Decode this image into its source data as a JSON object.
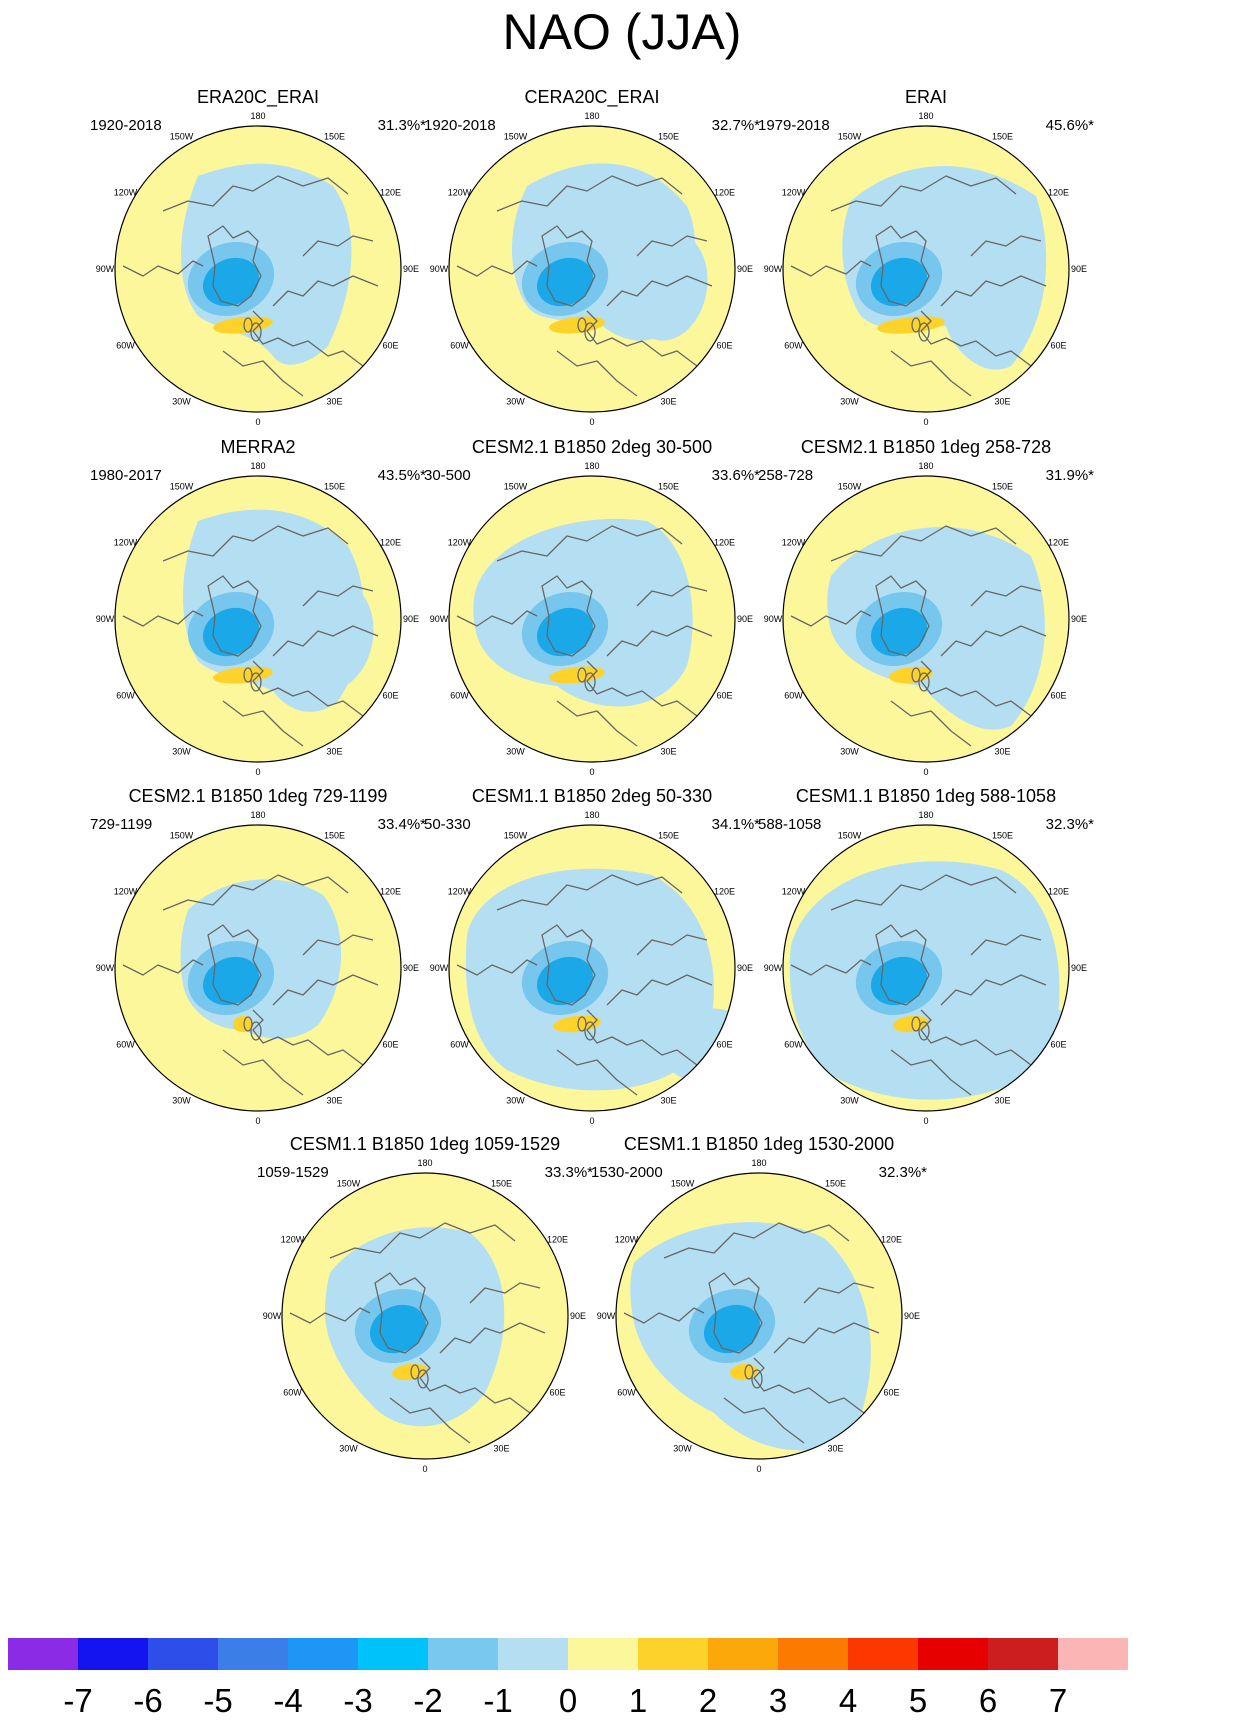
{
  "title": "NAO (JJA)",
  "colors": {
    "yellow_light": "#fdf79b",
    "blue_light": "#b4dff3",
    "blue_mid": "#76c6ee",
    "blue_strong": "#1ba8e8",
    "orange_yellow": "#fdd22a",
    "coast": "#666666",
    "ring": "#000000"
  },
  "longitude_labels": [
    "180",
    "150E",
    "120E",
    "90E",
    "60E",
    "30E",
    "0",
    "30W",
    "60W",
    "90W",
    "120W",
    "150W"
  ],
  "panels": [
    {
      "title": "ERA20C_ERAI",
      "period": "1920-2018",
      "percent": "31.3%*"
    },
    {
      "title": "CERA20C_ERAI",
      "period": "1920-2018",
      "percent": "32.7%*"
    },
    {
      "title": "ERAI",
      "period": "1979-2018",
      "percent": "45.6%*"
    },
    {
      "title": "MERRA2",
      "period": "1980-2017",
      "percent": "43.5%*"
    },
    {
      "title": "CESM2.1 B1850 2deg 30-500",
      "period": "30-500",
      "percent": "33.6%*"
    },
    {
      "title": "CESM2.1 B1850 1deg 258-728",
      "period": "258-728",
      "percent": "31.9%*"
    },
    {
      "title": "CESM2.1 B1850 1deg 729-1199",
      "period": "729-1199",
      "percent": "33.4%*"
    },
    {
      "title": "CESM1.1 B1850 2deg 50-330",
      "period": "50-330",
      "percent": "34.1%*"
    },
    {
      "title": "CESM1.1 B1850 1deg 588-1058",
      "period": "588-1058",
      "percent": "32.3%*"
    },
    {
      "title": "CESM1.1 B1850 1deg 1059-1529",
      "period": "1059-1529",
      "percent": "33.3%*"
    },
    {
      "title": "CESM1.1 B1850 1deg 1530-2000",
      "period": "1530-2000",
      "percent": "32.3%*"
    }
  ],
  "colorbar": {
    "labels": [
      "-7",
      "-6",
      "-5",
      "-4",
      "-3",
      "-2",
      "-1",
      "0",
      "1",
      "2",
      "3",
      "4",
      "5",
      "6",
      "7"
    ],
    "colors": [
      "#8b2be6",
      "#1414f0",
      "#2d4ee8",
      "#3c7ee8",
      "#1e96f5",
      "#00c2fa",
      "#78c8f0",
      "#b4dff3",
      "#fdf79b",
      "#fdd22a",
      "#fda80a",
      "#fd7a00",
      "#fd3700",
      "#e60000",
      "#cc1e1e",
      "#fbb5b5"
    ]
  }
}
